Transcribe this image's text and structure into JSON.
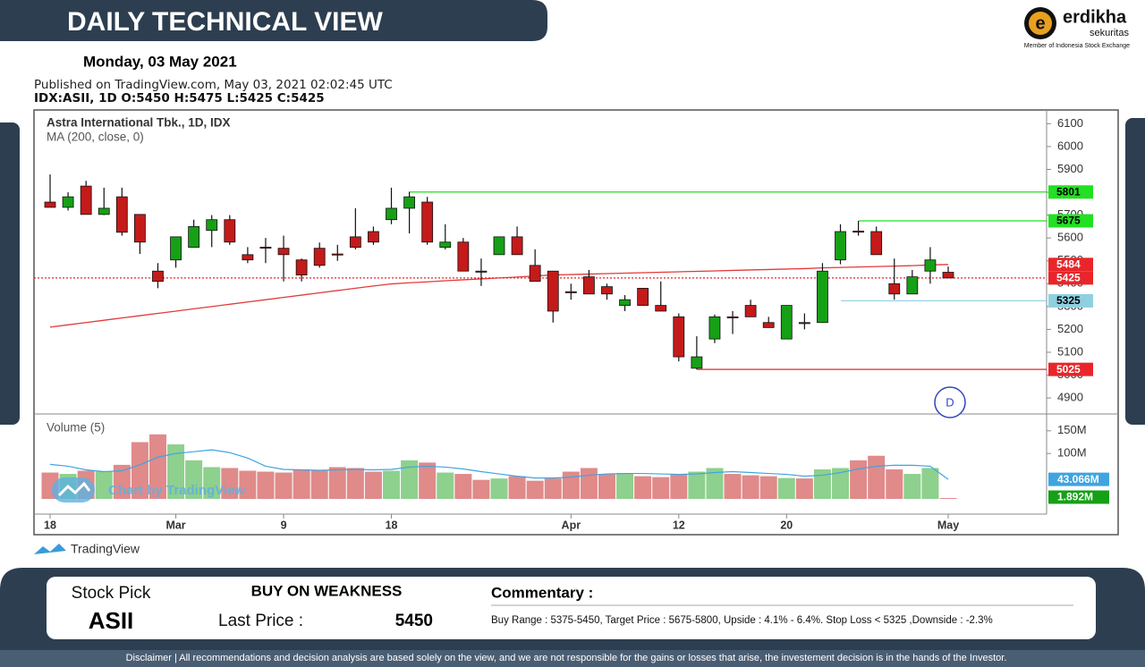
{
  "header": {
    "title": "DAILY TECHNICAL VIEW",
    "date": "Monday, 03 May 2021",
    "published": "Published on TradingView.com, May 03, 2021 02:02:45 UTC",
    "ohlc": "IDX:ASII, 1D  O:5450 H:5475 L:5425 C:5425"
  },
  "logo": {
    "name": "erdikha",
    "sub": "sekuritas",
    "member": "Member of Indonesia Stock Exchange"
  },
  "chart_data": {
    "type": "candlestick",
    "title": "Astra International Tbk., 1D, IDX",
    "subtitle": "MA (200, close, 0)",
    "categories": [
      "18",
      null,
      null,
      null,
      null,
      null,
      null,
      "Mar",
      null,
      null,
      null,
      null,
      null,
      "9",
      null,
      null,
      null,
      null,
      null,
      "18",
      null,
      null,
      null,
      null,
      null,
      null,
      null,
      null,
      null,
      "Apr",
      null,
      null,
      null,
      null,
      null,
      "12",
      null,
      null,
      null,
      null,
      null,
      "20",
      null,
      null,
      null,
      null,
      null,
      null,
      null,
      null,
      "May"
    ],
    "open": [
      5757,
      5734,
      5827,
      5703,
      5780,
      5703,
      5455,
      5504,
      5559,
      5633,
      5680,
      5527,
      5560,
      5555,
      5504,
      5555,
      5530,
      5605,
      5628,
      5680,
      5730,
      5757,
      5559,
      5582,
      5455,
      5527,
      5605,
      5480,
      5455,
      5365,
      5430,
      5387,
      5305,
      5380,
      5305,
      5255,
      5030,
      5158,
      5255,
      5305,
      5230,
      5158,
      5230,
      5230,
      5504,
      5630,
      5628,
      5400,
      5355,
      5455,
      5450
    ],
    "high": [
      5878,
      5800,
      5850,
      5820,
      5820,
      5703,
      5490,
      5605,
      5680,
      5700,
      5700,
      5560,
      5600,
      5610,
      5510,
      5580,
      5570,
      5730,
      5650,
      5820,
      5801,
      5780,
      5660,
      5600,
      5510,
      5605,
      5650,
      5550,
      5455,
      5400,
      5460,
      5400,
      5350,
      5380,
      5410,
      5270,
      5170,
      5265,
      5280,
      5330,
      5255,
      5305,
      5270,
      5490,
      5660,
      5675,
      5650,
      5510,
      5460,
      5560,
      5475
    ],
    "low": [
      5734,
      5720,
      5703,
      5700,
      5610,
      5530,
      5380,
      5470,
      5560,
      5560,
      5570,
      5490,
      5490,
      5410,
      5410,
      5470,
      5500,
      5550,
      5570,
      5660,
      5620,
      5570,
      5550,
      5455,
      5390,
      5527,
      5527,
      5410,
      5230,
      5330,
      5355,
      5330,
      5280,
      5305,
      5280,
      5060,
      5025,
      5140,
      5180,
      5255,
      5208,
      5158,
      5200,
      5230,
      5485,
      5610,
      5527,
      5330,
      5355,
      5400,
      5425
    ],
    "close": [
      5734,
      5780,
      5703,
      5730,
      5625,
      5582,
      5410,
      5605,
      5650,
      5680,
      5582,
      5504,
      5558,
      5527,
      5438,
      5480,
      5527,
      5559,
      5582,
      5730,
      5780,
      5582,
      5582,
      5455,
      5453,
      5605,
      5527,
      5410,
      5280,
      5363,
      5355,
      5355,
      5330,
      5305,
      5280,
      5080,
      5080,
      5255,
      5253,
      5255,
      5208,
      5305,
      5228,
      5455,
      5628,
      5628,
      5527,
      5355,
      5430,
      5504,
      5425
    ],
    "up_color": "#16a016",
    "down_color": "#c41a1a",
    "ma": {
      "color": "#e23a3a",
      "values": [
        5210,
        5220,
        5230,
        5240,
        5250,
        5260,
        5270,
        5280,
        5290,
        5300,
        5310,
        5320,
        5330,
        5340,
        5350,
        5360,
        5370,
        5380,
        5390,
        5399,
        5404,
        5408,
        5413,
        5417,
        5421,
        5425,
        5429,
        5434,
        5438,
        5440,
        5442,
        5444,
        5446,
        5448,
        5450,
        5452,
        5454,
        5456,
        5458,
        5460,
        5462,
        5464,
        5466,
        5469,
        5471,
        5473,
        5475,
        5477,
        5479,
        5482,
        5484
      ]
    },
    "ylim": [
      4830,
      6160
    ],
    "yticks": [
      4900,
      5000,
      5100,
      5200,
      5300,
      5400,
      5500,
      5600,
      5700,
      5800,
      5900,
      6000,
      6100
    ],
    "levels": [
      {
        "value": 5801,
        "color": "#22e022",
        "text_color": "#000"
      },
      {
        "value": 5675,
        "color": "#22e022",
        "text_color": "#000"
      },
      {
        "value": 5484,
        "color": "#e8262a",
        "text_color": "#fff"
      },
      {
        "value": 5425,
        "color": "#e8262a",
        "text_color": "#fff"
      },
      {
        "value": 5325,
        "color": "#8fd0e0",
        "text_color": "#000"
      },
      {
        "value": 5025,
        "color": "#e8262a",
        "text_color": "#fff"
      }
    ],
    "volume": {
      "title": "Volume (5)",
      "values": [
        58,
        55,
        62,
        60,
        75,
        125,
        142,
        120,
        85,
        70,
        68,
        62,
        60,
        58,
        65,
        62,
        70,
        68,
        60,
        62,
        85,
        80,
        58,
        55,
        42,
        45,
        50,
        40,
        45,
        60,
        68,
        55,
        57,
        50,
        48,
        55,
        60,
        68,
        55,
        52,
        50,
        46,
        45,
        65,
        68,
        85,
        95,
        65,
        55,
        68,
        1.892
      ],
      "last_label": "1.892M",
      "up_color": "#8ed08e",
      "down_color": "#e08a8a",
      "ma_color": "#3fa4e0",
      "ma_values": [
        76,
        72,
        64,
        60,
        62,
        75,
        92,
        100,
        104,
        108,
        102,
        90,
        72,
        65,
        64,
        63,
        64,
        65,
        64,
        65,
        70,
        72,
        70,
        66,
        60,
        55,
        50,
        46,
        46,
        48,
        52,
        55,
        56,
        56,
        55,
        54,
        55,
        58,
        60,
        58,
        56,
        54,
        50,
        52,
        58,
        66,
        72,
        74,
        74,
        72,
        43.066
      ],
      "ma_last_label": "43.066M",
      "ylim": [
        0,
        187
      ],
      "yticks": [
        {
          "value": 100,
          "label": "100M"
        },
        {
          "value": 150,
          "label": "150M"
        }
      ]
    },
    "watermark": "Chart by TradingView",
    "brand": "TradingView",
    "interval_badge": "D"
  },
  "footer": {
    "stock_pick_label": "Stock Pick",
    "ticker": "ASII",
    "recommendation": "BUY ON WEAKNESS",
    "last_price_label": "Last Price :",
    "last_price": "5450",
    "commentary_label": "Commentary :",
    "commentary": "Buy Range : 5375-5450, Target Price : 5675-5800, Upside : 4.1% - 6.4%. Stop Loss < 5325 ,Downside : -2.3%",
    "disclaimer": "Disclaimer | All recommendations  and decision analysis are based solely on the view, and we are not responsible for the gains or losses that arise, the investement decision is in the hands of the Investor."
  }
}
